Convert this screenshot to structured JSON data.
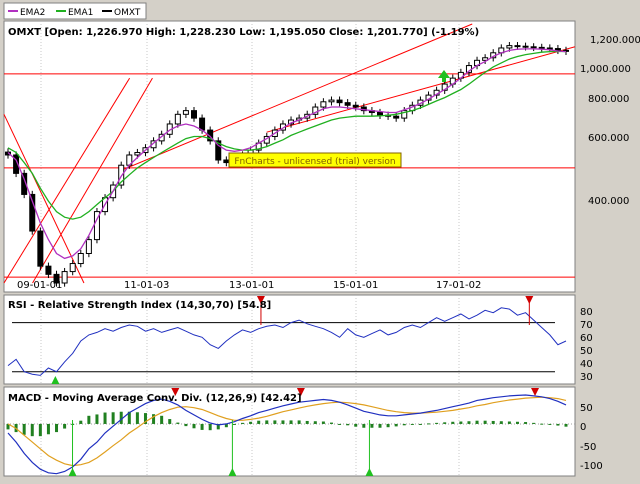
{
  "legend": [
    {
      "label": "EMA2",
      "color": "#b030c0"
    },
    {
      "label": "EMA1",
      "color": "#20b020"
    },
    {
      "label": "OMXT",
      "color": "#000000"
    }
  ],
  "price_panel": {
    "title": "OMXT [Open: 1,226.970  High: 1,228.230  Low: 1,195.050  Close: 1,201.770] (-1.19%)",
    "watermark": "FnCharts - unlicensed (trial) version",
    "y_tick_labels": [
      "1,200.000",
      "1,000.000",
      "800.000",
      "600.000",
      "400.000"
    ],
    "x_tick_labels": [
      "09-01-01",
      "11-01-03",
      "13-01-01",
      "15-01-01",
      "17-01-02"
    ]
  },
  "rsi_panel": {
    "title": "RSI - Relative Strength Index (14,30,70) [54.8]",
    "y_tick_labels": [
      "80",
      "70",
      "60",
      "50",
      "40",
      "30"
    ]
  },
  "macd_panel": {
    "title": "MACD - Moving Average Conv. Div. (12,26,9) [42.42]",
    "y_tick_labels": [
      "50",
      "0",
      "-50",
      "-100"
    ]
  },
  "colors": {
    "plot_bg": "#ffffff",
    "ema2": "#b030c0",
    "ema1": "#20b020",
    "trendline": "#ff0000",
    "rsi_line": "#2030c0",
    "macd_line": "#2030c0",
    "signal_line": "#e0a020",
    "histogram": "#208020",
    "sell_arrow": "#d00000",
    "buy_arrow": "#20c020",
    "watermark_bg": "#ffff00"
  },
  "chart_data": [
    {
      "type": "candlestick",
      "series_name": "OMXT",
      "y_scale": "log",
      "ylim": [
        240,
        1450
      ],
      "x_tick_labels": [
        "09-01-01",
        "11-01-03",
        "13-01-01",
        "15-01-01",
        "17-01-02"
      ],
      "y_ticks": [
        1200,
        1000,
        800,
        600,
        400
      ],
      "horizontal_levels": [
        1030,
        540,
        255
      ],
      "close": [
        590,
        520,
        450,
        350,
        275,
        260,
        245,
        265,
        280,
        300,
        330,
        400,
        440,
        480,
        550,
        590,
        600,
        620,
        650,
        680,
        730,
        780,
        800,
        760,
        700,
        650,
        570,
        560,
        580,
        590,
        610,
        640,
        670,
        700,
        730,
        750,
        760,
        780,
        820,
        850,
        860,
        845,
        830,
        820,
        800,
        790,
        775,
        770,
        760,
        800,
        830,
        860,
        890,
        920,
        960,
        1000,
        1040,
        1090,
        1130,
        1150,
        1190,
        1230,
        1250,
        1245,
        1240,
        1235,
        1230,
        1225,
        1210,
        1202
      ],
      "ema1": [
        620,
        600,
        560,
        520,
        470,
        430,
        400,
        385,
        380,
        385,
        400,
        420,
        440,
        460,
        490,
        515,
        540,
        560,
        580,
        600,
        620,
        640,
        660,
        670,
        670,
        660,
        640,
        625,
        615,
        610,
        610,
        615,
        625,
        640,
        655,
        675,
        690,
        705,
        720,
        735,
        750,
        760,
        765,
        770,
        770,
        770,
        772,
        775,
        780,
        790,
        800,
        815,
        835,
        855,
        875,
        900,
        925,
        960,
        1000,
        1040,
        1080,
        1110,
        1140,
        1160,
        1175,
        1185,
        1195,
        1200,
        1202,
        1200
      ],
      "ema2": [
        600,
        570,
        500,
        430,
        370,
        330,
        300,
        290,
        295,
        310,
        340,
        380,
        420,
        460,
        510,
        550,
        580,
        610,
        640,
        670,
        700,
        720,
        730,
        720,
        700,
        670,
        630,
        610,
        605,
        610,
        620,
        640,
        660,
        685,
        710,
        735,
        750,
        770,
        790,
        810,
        820,
        820,
        815,
        810,
        805,
        800,
        795,
        790,
        790,
        805,
        820,
        840,
        865,
        895,
        925,
        960,
        1000,
        1050,
        1090,
        1120,
        1160,
        1190,
        1210,
        1220,
        1222,
        1222,
        1220,
        1215,
        1205,
        1200
      ],
      "upper_channel": {
        "x_frac": [
          0.21,
          0.82
        ],
        "y": [
          535,
          1450
        ]
      },
      "lower_channel": {
        "x_frac": [
          0.46,
          1.0
        ],
        "y": [
          690,
          1240
        ]
      },
      "steep_lines": [
        {
          "x_frac": [
            0.0,
            0.22
          ],
          "y": [
            245,
            1000
          ]
        },
        {
          "x_frac": [
            0.05,
            0.26
          ],
          "y": [
            245,
            1000
          ]
        },
        {
          "x_frac": [
            0.0,
            0.14
          ],
          "y": [
            780,
            245
          ]
        }
      ]
    },
    {
      "type": "line",
      "series_name": "RSI",
      "ylim": [
        20,
        90
      ],
      "y_ticks": [
        80,
        70,
        60,
        50,
        40,
        30
      ],
      "thresholds": [
        70,
        30
      ],
      "values": [
        35,
        40,
        30,
        28,
        27,
        33,
        30,
        38,
        45,
        55,
        60,
        62,
        65,
        63,
        66,
        68,
        67,
        63,
        65,
        62,
        64,
        66,
        63,
        60,
        58,
        52,
        49,
        55,
        60,
        64,
        62,
        65,
        67,
        68,
        66,
        70,
        72,
        69,
        67,
        65,
        62,
        58,
        65,
        60,
        58,
        61,
        64,
        60,
        62,
        66,
        68,
        66,
        70,
        74,
        71,
        74,
        77,
        73,
        76,
        80,
        78,
        82,
        81,
        76,
        78,
        72,
        66,
        60,
        52,
        55
      ],
      "sell_signals_x_frac": [
        0.45,
        0.92
      ],
      "buy_signals_x_frac": [
        0.09
      ]
    },
    {
      "type": "line",
      "series_name": "MACD",
      "ylim": [
        -115,
        75
      ],
      "y_ticks": [
        50,
        0,
        -50,
        -100
      ],
      "macd": [
        -20,
        -40,
        -65,
        -85,
        -100,
        -108,
        -110,
        -105,
        -95,
        -78,
        -55,
        -40,
        -20,
        -5,
        10,
        25,
        35,
        45,
        52,
        55,
        50,
        42,
        30,
        20,
        10,
        2,
        -2,
        0,
        5,
        12,
        18,
        25,
        30,
        35,
        40,
        44,
        48,
        50,
        52,
        54,
        52,
        48,
        42,
        35,
        28,
        24,
        20,
        18,
        18,
        20,
        22,
        24,
        27,
        30,
        34,
        38,
        42,
        46,
        52,
        55,
        58,
        60,
        62,
        63,
        64,
        62,
        60,
        56,
        50,
        42
      ],
      "signal": [
        0,
        -10,
        -25,
        -40,
        -55,
        -70,
        -80,
        -88,
        -92,
        -90,
        -85,
        -75,
        -62,
        -48,
        -35,
        -20,
        -8,
        5,
        16,
        25,
        32,
        37,
        38,
        36,
        32,
        25,
        18,
        12,
        8,
        8,
        10,
        13,
        17,
        22,
        27,
        31,
        35,
        39,
        42,
        45,
        47,
        48,
        47,
        45,
        42,
        38,
        34,
        30,
        27,
        25,
        24,
        24,
        25,
        26,
        28,
        30,
        33,
        36,
        40,
        43,
        47,
        50,
        53,
        55,
        57,
        58,
        59,
        58,
        56,
        52
      ],
      "sell_signals_x_frac": [
        0.3,
        0.52,
        0.93
      ],
      "buy_signals_x_frac": [
        0.12,
        0.4,
        0.64
      ]
    }
  ]
}
